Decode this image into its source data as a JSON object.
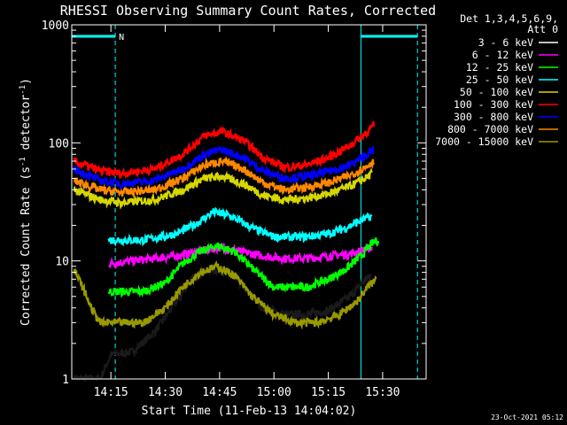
{
  "chart_data": {
    "type": "line",
    "title": "RHESSI Observing Summary Count Rates, Corrected",
    "xlabel": "Start Time (11-Feb-13 14:04:02)",
    "ylabel_main": "Corrected Count Rate (s",
    "ylabel_sup1": "-1",
    "ylabel_mid": " detector",
    "ylabel_sup2": "-1",
    "ylabel_end": ")",
    "y_scale": "log",
    "ylim": [
      1,
      1000
    ],
    "xlim_minutes": [
      14.07,
      15.7
    ],
    "x_ticks": [
      {
        "label": "14:15",
        "t": 14.25
      },
      {
        "label": "14:30",
        "t": 14.5
      },
      {
        "label": "14:45",
        "t": 14.75
      },
      {
        "label": "15:00",
        "t": 15.0
      },
      {
        "label": "15:15",
        "t": 15.25
      },
      {
        "label": "15:30",
        "t": 15.5
      }
    ],
    "y_tick_labels": [
      {
        "label": "1000",
        "v": 1000
      },
      {
        "label": "100",
        "v": 100
      },
      {
        "label": "10",
        "v": 10
      },
      {
        "label": "1",
        "v": 1
      }
    ],
    "legend_header": "Det 1,3,4,5,6,9,",
    "legend_header2": "Att 0",
    "legend_position": "top-right",
    "grid": false,
    "flag_label": "N",
    "night_intervals": [
      {
        "start": 14.07,
        "end": 14.27
      },
      {
        "start": 15.4,
        "end": 15.66
      }
    ],
    "series": [
      {
        "name": "3 - 6 keV",
        "color": "#000000",
        "points": [
          [
            14.08,
            1.0
          ],
          [
            14.2,
            1.0
          ],
          [
            14.25,
            1.6
          ],
          [
            14.35,
            1.7
          ],
          [
            14.45,
            2.5
          ],
          [
            14.55,
            4.5
          ],
          [
            14.62,
            7.0
          ],
          [
            14.7,
            8.5
          ],
          [
            14.8,
            8.0
          ],
          [
            14.88,
            5.5
          ],
          [
            14.95,
            4.0
          ],
          [
            15.05,
            3.5
          ],
          [
            15.15,
            3.5
          ],
          [
            15.25,
            3.8
          ],
          [
            15.35,
            5.0
          ],
          [
            15.42,
            7.0
          ],
          [
            15.45,
            7.5
          ]
        ]
      },
      {
        "name": "6 - 12 keV",
        "color": "#ff00ff",
        "points": [
          [
            14.24,
            9.5
          ],
          [
            14.35,
            10
          ],
          [
            14.45,
            10.5
          ],
          [
            14.55,
            11
          ],
          [
            14.65,
            12
          ],
          [
            14.75,
            13
          ],
          [
            14.85,
            12
          ],
          [
            14.95,
            11
          ],
          [
            15.05,
            10.5
          ],
          [
            15.15,
            10.5
          ],
          [
            15.25,
            11
          ],
          [
            15.35,
            11.5
          ],
          [
            15.42,
            12.5
          ],
          [
            15.45,
            13
          ]
        ]
      },
      {
        "name": "12 - 25 keV",
        "color": "#00ff00",
        "points": [
          [
            14.24,
            5.5
          ],
          [
            14.4,
            5.5
          ],
          [
            14.5,
            6.5
          ],
          [
            14.58,
            9.5
          ],
          [
            14.66,
            12
          ],
          [
            14.74,
            13.5
          ],
          [
            14.82,
            12
          ],
          [
            14.92,
            8.0
          ],
          [
            15.0,
            6.0
          ],
          [
            15.15,
            6.0
          ],
          [
            15.25,
            7.0
          ],
          [
            15.33,
            8.5
          ],
          [
            15.4,
            11
          ],
          [
            15.45,
            14
          ],
          [
            15.48,
            15
          ]
        ]
      },
      {
        "name": "25 - 50 keV",
        "color": "#00ffff",
        "points": [
          [
            14.24,
            15
          ],
          [
            14.4,
            15
          ],
          [
            14.55,
            17
          ],
          [
            14.65,
            21
          ],
          [
            14.72,
            26
          ],
          [
            14.8,
            24
          ],
          [
            14.9,
            19
          ],
          [
            15.0,
            16
          ],
          [
            15.15,
            16
          ],
          [
            15.25,
            17
          ],
          [
            15.33,
            19
          ],
          [
            15.4,
            22
          ],
          [
            15.45,
            24
          ]
        ]
      },
      {
        "name": "50 - 100 keV",
        "color": "#d7d700",
        "points": [
          [
            14.08,
            40
          ],
          [
            14.2,
            33
          ],
          [
            14.3,
            31
          ],
          [
            14.45,
            33
          ],
          [
            14.58,
            40
          ],
          [
            14.68,
            50
          ],
          [
            14.76,
            52
          ],
          [
            14.86,
            45
          ],
          [
            14.95,
            36
          ],
          [
            15.05,
            33
          ],
          [
            15.15,
            34
          ],
          [
            15.25,
            37
          ],
          [
            15.35,
            43
          ],
          [
            15.42,
            50
          ],
          [
            15.45,
            55
          ]
        ]
      },
      {
        "name": "100 - 300 keV",
        "color": "#ff0000",
        "points": [
          [
            14.08,
            70
          ],
          [
            14.2,
            58
          ],
          [
            14.3,
            55
          ],
          [
            14.45,
            60
          ],
          [
            14.58,
            80
          ],
          [
            14.68,
            115
          ],
          [
            14.76,
            125
          ],
          [
            14.86,
            105
          ],
          [
            14.95,
            75
          ],
          [
            15.05,
            62
          ],
          [
            15.15,
            65
          ],
          [
            15.25,
            75
          ],
          [
            15.35,
            95
          ],
          [
            15.42,
            120
          ],
          [
            15.46,
            140
          ]
        ]
      },
      {
        "name": "300 - 800 keV",
        "color": "#0000ff",
        "points": [
          [
            14.08,
            60
          ],
          [
            14.2,
            48
          ],
          [
            14.3,
            45
          ],
          [
            14.45,
            48
          ],
          [
            14.58,
            60
          ],
          [
            14.68,
            80
          ],
          [
            14.76,
            88
          ],
          [
            14.86,
            75
          ],
          [
            14.95,
            58
          ],
          [
            15.05,
            50
          ],
          [
            15.15,
            52
          ],
          [
            15.25,
            57
          ],
          [
            15.35,
            65
          ],
          [
            15.42,
            78
          ],
          [
            15.46,
            88
          ]
        ]
      },
      {
        "name": "800 - 7000 keV",
        "color": "#ff8800",
        "points": [
          [
            14.08,
            48
          ],
          [
            14.2,
            40
          ],
          [
            14.3,
            38
          ],
          [
            14.45,
            40
          ],
          [
            14.58,
            50
          ],
          [
            14.68,
            65
          ],
          [
            14.76,
            70
          ],
          [
            14.86,
            60
          ],
          [
            14.95,
            46
          ],
          [
            15.05,
            40
          ],
          [
            15.15,
            42
          ],
          [
            15.25,
            46
          ],
          [
            15.35,
            53
          ],
          [
            15.42,
            62
          ],
          [
            15.46,
            70
          ]
        ]
      },
      {
        "name": "7000 - 15000 keV",
        "color": "#999900",
        "points": [
          [
            14.08,
            8.5
          ],
          [
            14.12,
            6.0
          ],
          [
            14.16,
            4.0
          ],
          [
            14.2,
            3.0
          ],
          [
            14.3,
            3.0
          ],
          [
            14.4,
            3.0
          ],
          [
            14.5,
            4.0
          ],
          [
            14.58,
            6.0
          ],
          [
            14.66,
            8.0
          ],
          [
            14.74,
            9.0
          ],
          [
            14.82,
            7.5
          ],
          [
            14.9,
            5.0
          ],
          [
            15.0,
            3.5
          ],
          [
            15.1,
            3.0
          ],
          [
            15.2,
            3.0
          ],
          [
            15.3,
            3.5
          ],
          [
            15.38,
            4.5
          ],
          [
            15.43,
            6.0
          ],
          [
            15.47,
            7.0
          ]
        ]
      }
    ]
  },
  "footer": {
    "timestamp": "23-Oct-2021 05:12"
  }
}
